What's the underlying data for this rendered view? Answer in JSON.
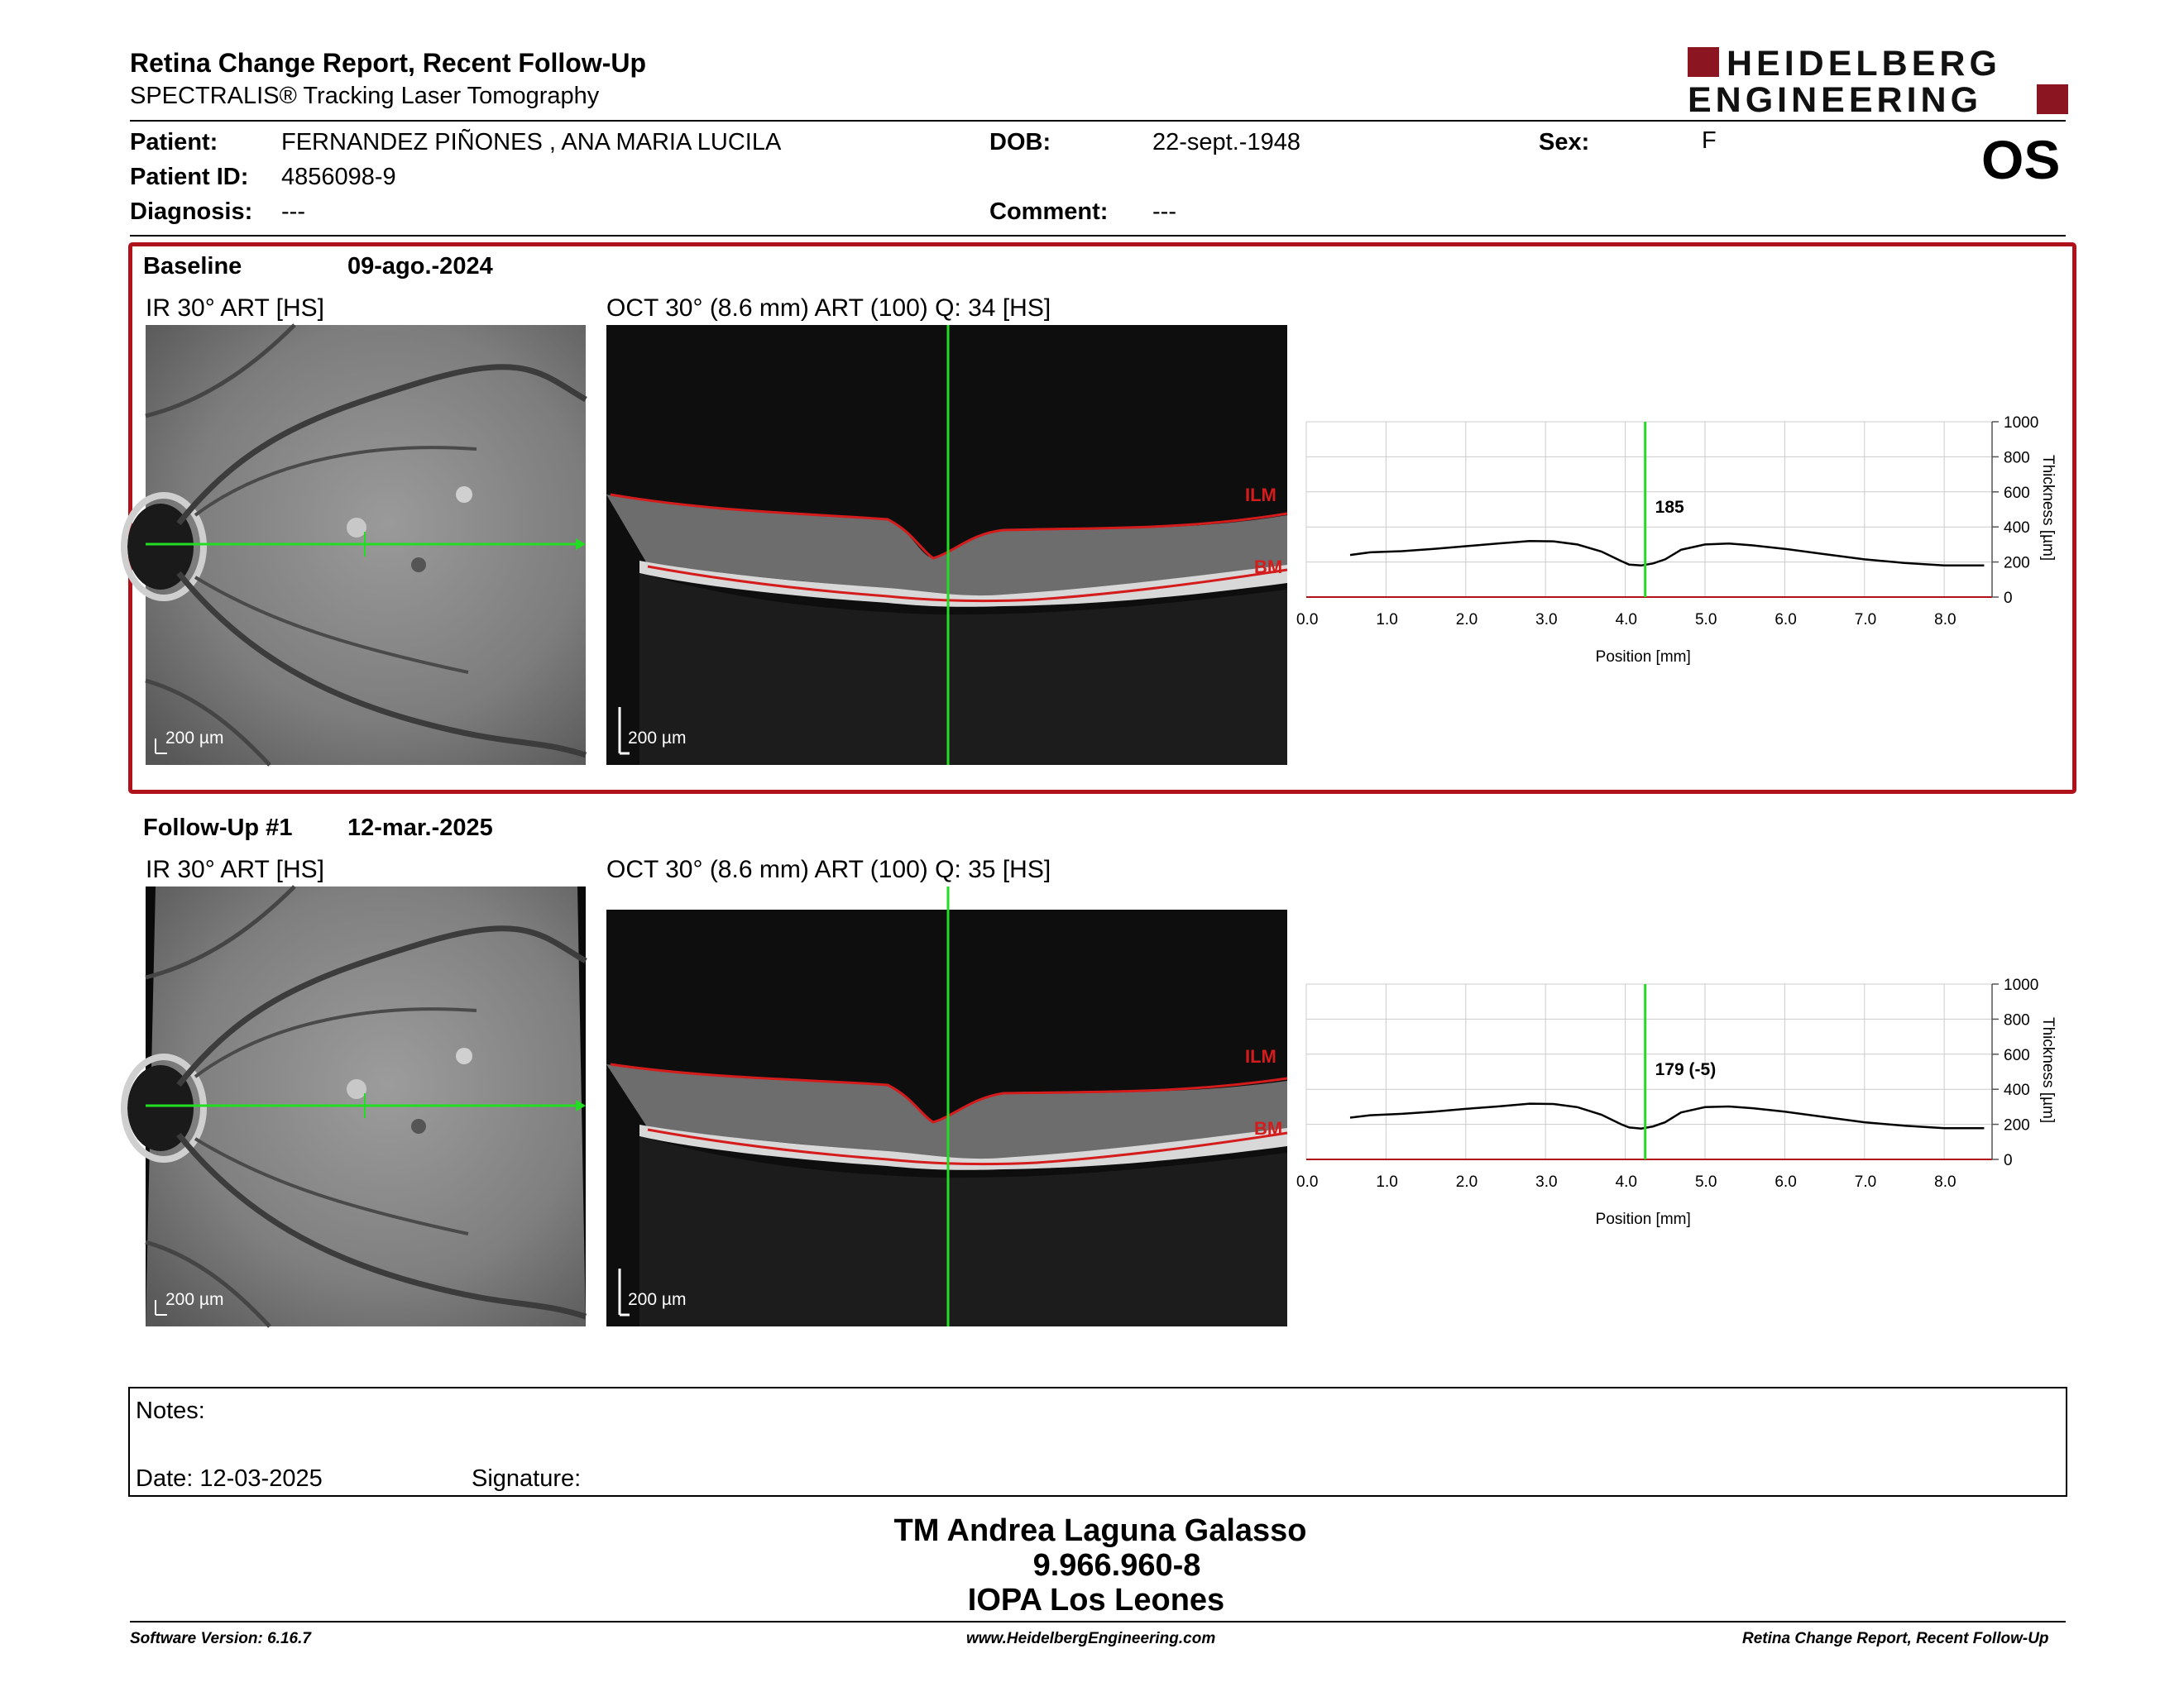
{
  "header": {
    "title": "Retina Change Report, Recent Follow-Up",
    "subtitle": "SPECTRALIS® Tracking Laser Tomography",
    "logo_line1": "HEIDELBERG",
    "logo_line2": "ENGINEERING",
    "eye": "OS",
    "brand_color": "#8b1622"
  },
  "patient": {
    "patient_label": "Patient:",
    "patient_value": "FERNANDEZ PIÑONES , ANA MARIA LUCILA",
    "id_label": "Patient ID:",
    "id_value": "4856098-9",
    "diagnosis_label": "Diagnosis:",
    "diagnosis_value": "---",
    "dob_label": "DOB:",
    "dob_value": "22-sept.-1948",
    "comment_label": "Comment:",
    "comment_value": "---",
    "sex_label": "Sex:",
    "sex_value": "F"
  },
  "baseline": {
    "label": "Baseline",
    "date": "09-ago.-2024",
    "ir_title": "IR 30° ART [HS]",
    "oct_title": "OCT 30° (8.6 mm) ART (100) Q: 34 [HS]",
    "scale_ir": "200 µm",
    "scale_oct": "200 µm",
    "ilm": "ILM",
    "bm": "BM",
    "frame_color": "#b0121b"
  },
  "followup": {
    "label": "Follow-Up #1",
    "date": "12-mar.-2025",
    "ir_title": "IR 30° ART [HS]",
    "oct_title": "OCT 30° (8.6 mm) ART (100) Q: 35 [HS]",
    "scale_ir": "200 µm",
    "scale_oct": "200 µm",
    "ilm": "ILM",
    "bm": "BM"
  },
  "chart_data": [
    {
      "type": "line",
      "xlabel": "Position [mm]",
      "ylabel": "Thickness [µm]",
      "xlim": [
        0,
        8.6
      ],
      "ylim": [
        0,
        1000
      ],
      "xticks": [
        "0.0",
        "1.0",
        "2.0",
        "3.0",
        "4.0",
        "5.0",
        "6.0",
        "7.0",
        "8.0"
      ],
      "yticks": [
        "0",
        "200",
        "400",
        "600",
        "800",
        "1000"
      ],
      "cursor_x": 4.25,
      "cursor_label": "185",
      "cursor_color": "#22dd22",
      "grid": true,
      "x": [
        0.55,
        0.8,
        1.2,
        1.6,
        2.0,
        2.4,
        2.8,
        3.1,
        3.4,
        3.7,
        3.95,
        4.05,
        4.2,
        4.35,
        4.5,
        4.7,
        5.0,
        5.3,
        5.6,
        6.0,
        6.5,
        7.0,
        7.5,
        8.0,
        8.5
      ],
      "values": [
        240,
        255,
        262,
        275,
        290,
        305,
        320,
        318,
        300,
        260,
        205,
        185,
        180,
        192,
        215,
        270,
        300,
        305,
        295,
        275,
        245,
        215,
        195,
        180,
        180
      ]
    },
    {
      "type": "line",
      "xlabel": "Position [mm]",
      "ylabel": "Thickness [µm]",
      "xlim": [
        0,
        8.6
      ],
      "ylim": [
        0,
        1000
      ],
      "xticks": [
        "0.0",
        "1.0",
        "2.0",
        "3.0",
        "4.0",
        "5.0",
        "6.0",
        "7.0",
        "8.0"
      ],
      "yticks": [
        "0",
        "200",
        "400",
        "600",
        "800",
        "1000"
      ],
      "cursor_x": 4.25,
      "cursor_label": "179 (-5)",
      "cursor_color": "#22dd22",
      "grid": true,
      "x": [
        0.55,
        0.8,
        1.2,
        1.6,
        2.0,
        2.4,
        2.8,
        3.1,
        3.4,
        3.7,
        3.95,
        4.05,
        4.2,
        4.35,
        4.5,
        4.7,
        5.0,
        5.3,
        5.6,
        6.0,
        6.5,
        7.0,
        7.5,
        8.0,
        8.5
      ],
      "values": [
        238,
        252,
        260,
        272,
        288,
        302,
        318,
        316,
        298,
        255,
        200,
        182,
        176,
        188,
        212,
        268,
        298,
        302,
        292,
        272,
        242,
        212,
        192,
        178,
        178
      ]
    }
  ],
  "notes": {
    "notes_label": "Notes:",
    "date_label": "Date: 12-03-2025",
    "signature_label": "Signature:"
  },
  "signer": {
    "name": "TM Andrea Laguna Galasso",
    "id": "9.966.960-8",
    "institution": "IOPA Los Leones"
  },
  "footer": {
    "software": "Software Version: 6.16.7",
    "website": "www.HeidelbergEngineering.com",
    "report_name": "Retina Change Report, Recent Follow-Up"
  }
}
